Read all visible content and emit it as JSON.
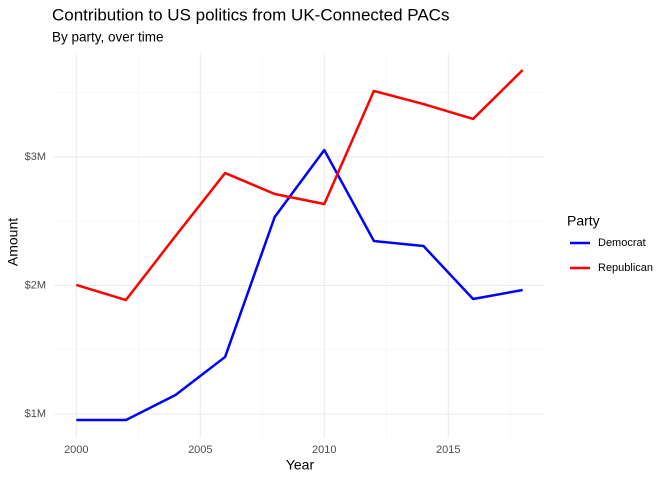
{
  "chart_data": {
    "type": "line",
    "title": "Contribution to US politics from UK-Connected PACs",
    "subtitle": "By party, over time",
    "x_label": "Year",
    "y_label": "Amount",
    "legend_title": "Party",
    "legend": "right",
    "x": [
      2000,
      2002,
      2004,
      2006,
      2008,
      2010,
      2012,
      2014,
      2016,
      2018
    ],
    "series": [
      {
        "name": "Democrat",
        "color": "#0000ff",
        "values": [
          953000,
          953000,
          1148000,
          1444000,
          2533000,
          3054000,
          2346000,
          2307000,
          1895000,
          1965000
        ]
      },
      {
        "name": "Republican",
        "color": "#ff0000",
        "values": [
          2004000,
          1887000,
          2385000,
          2875000,
          2712000,
          2634000,
          3514000,
          3412000,
          3296000,
          3677000
        ]
      }
    ],
    "xlim": [
      1999.1,
      2018.9
    ],
    "xticks": [
      2000,
      2005,
      2010,
      2015
    ],
    "ylim": [
      814000,
      3806000
    ],
    "yticks": [
      {
        "value": 1000000,
        "label": "$1M"
      },
      {
        "value": 2000000,
        "label": "$2M"
      },
      {
        "value": 3000000,
        "label": "$3M"
      }
    ],
    "grid": true,
    "minor_grid": true
  }
}
